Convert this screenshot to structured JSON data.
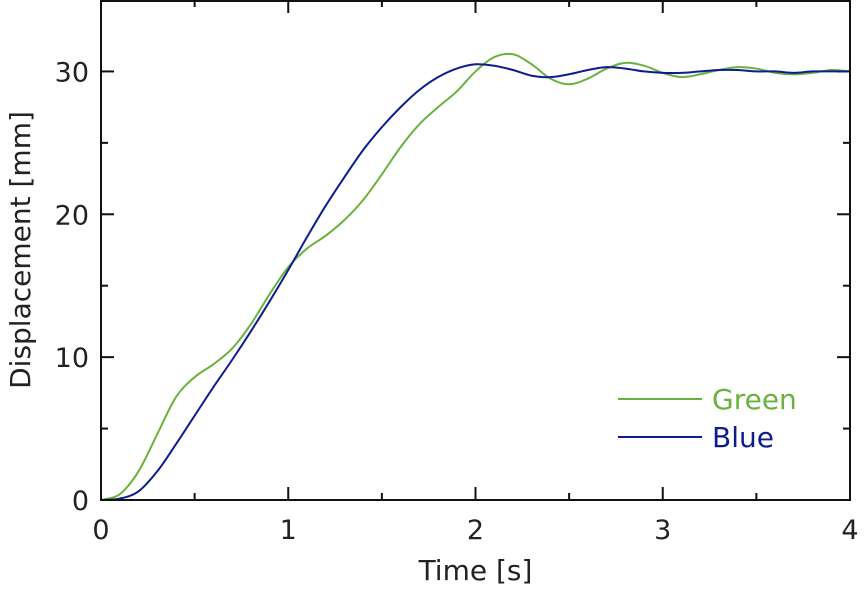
{
  "chart_data": {
    "type": "line",
    "title": "",
    "xlabel": "Time [s]",
    "ylabel": "Displacement [mm]",
    "xlim": [
      0,
      4
    ],
    "ylim": [
      0,
      35
    ],
    "xticks": [
      0,
      1,
      2,
      3,
      4
    ],
    "xtick_labels": [
      "0",
      "1",
      "2",
      "3",
      "4"
    ],
    "yticks": [
      0,
      10,
      20,
      30
    ],
    "ytick_labels": [
      "0",
      "10",
      "20",
      "30"
    ],
    "x_minor_step": 0.5,
    "y_minor_step": 5,
    "grid": false,
    "legend": "bottom-right",
    "series": [
      {
        "name": "Green",
        "color": "#6ab23e",
        "x": [
          0,
          0.1,
          0.2,
          0.3,
          0.4,
          0.5,
          0.6,
          0.7,
          0.8,
          0.9,
          1.0,
          1.1,
          1.2,
          1.3,
          1.4,
          1.5,
          1.6,
          1.7,
          1.8,
          1.9,
          2.0,
          2.1,
          2.2,
          2.3,
          2.4,
          2.5,
          2.6,
          2.7,
          2.8,
          2.9,
          3.0,
          3.1,
          3.2,
          3.3,
          3.4,
          3.5,
          3.6,
          3.7,
          3.8,
          3.9,
          4.0
        ],
        "y": [
          0,
          0.4,
          2.0,
          4.6,
          7.2,
          8.6,
          9.5,
          10.6,
          12.3,
          14.4,
          16.3,
          17.6,
          18.5,
          19.6,
          21.0,
          22.8,
          24.7,
          26.3,
          27.5,
          28.6,
          30.0,
          31.0,
          31.2,
          30.5,
          29.5,
          29.1,
          29.5,
          30.2,
          30.6,
          30.4,
          29.9,
          29.6,
          29.8,
          30.1,
          30.3,
          30.2,
          29.9,
          29.8,
          29.9,
          30.1,
          30.0
        ]
      },
      {
        "name": "Blue",
        "color": "#0d1e8c",
        "x": [
          0,
          0.1,
          0.2,
          0.3,
          0.4,
          0.5,
          0.6,
          0.7,
          0.8,
          0.9,
          1.0,
          1.1,
          1.2,
          1.3,
          1.4,
          1.5,
          1.6,
          1.7,
          1.8,
          1.9,
          2.0,
          2.1,
          2.2,
          2.3,
          2.4,
          2.5,
          2.6,
          2.7,
          2.8,
          2.9,
          3.0,
          3.1,
          3.2,
          3.3,
          3.4,
          3.5,
          3.6,
          3.7,
          3.8,
          3.9,
          4.0
        ],
        "y": [
          0,
          0.1,
          0.6,
          2.0,
          3.9,
          5.9,
          7.9,
          9.8,
          11.8,
          13.9,
          16.1,
          18.4,
          20.6,
          22.6,
          24.5,
          26.1,
          27.5,
          28.7,
          29.6,
          30.2,
          30.5,
          30.4,
          30.1,
          29.7,
          29.6,
          29.8,
          30.1,
          30.3,
          30.2,
          30.0,
          29.9,
          29.9,
          30.0,
          30.1,
          30.1,
          30.0,
          30.0,
          29.9,
          30.0,
          30.0,
          30.0
        ]
      }
    ]
  }
}
